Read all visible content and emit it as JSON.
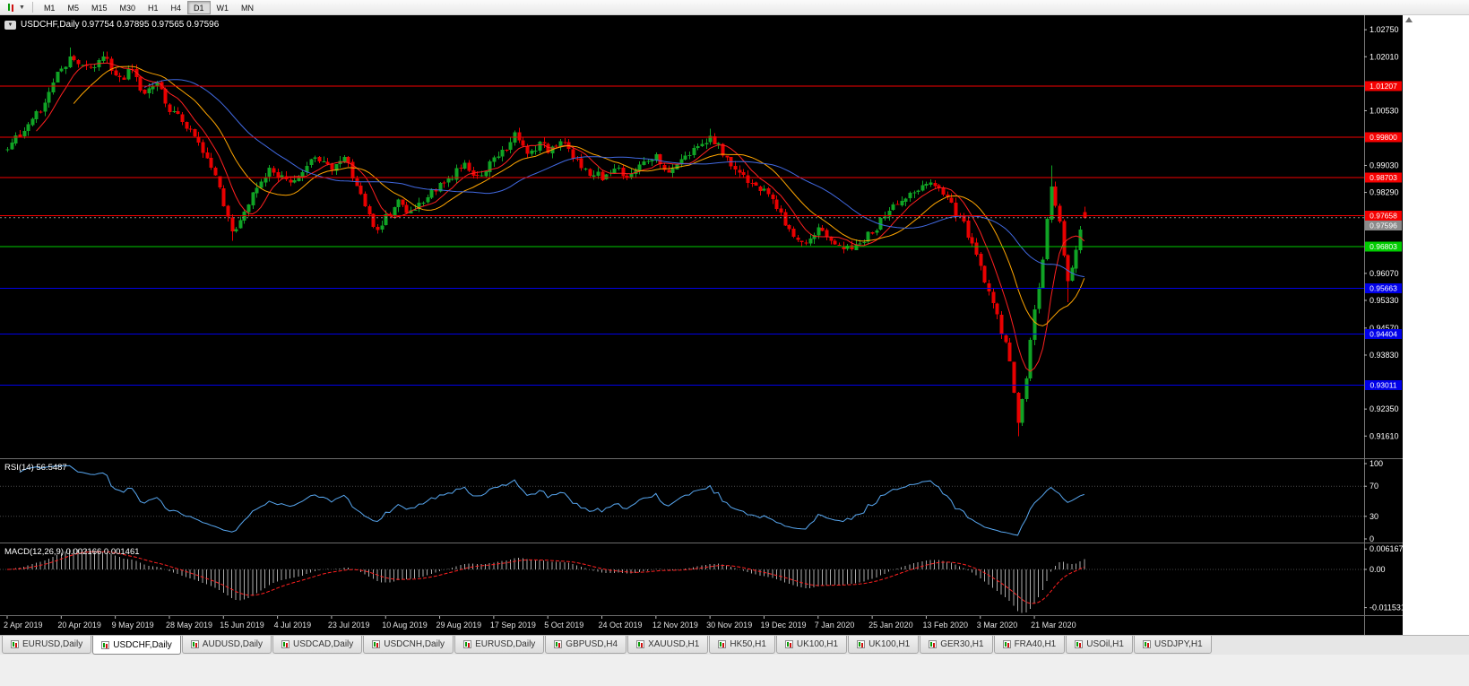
{
  "toolbar": {
    "timeframes": [
      "M1",
      "M5",
      "M15",
      "M30",
      "H1",
      "H4",
      "D1",
      "W1",
      "MN"
    ],
    "active_timeframe": "D1"
  },
  "chart": {
    "title_line": "USDCHF,Daily  0.97754 0.97895 0.97565 0.97596"
  },
  "chart_data": {
    "type": "candlestick",
    "symbol": "USDCHF",
    "period": "Daily",
    "last_bar": {
      "open": 0.97754,
      "high": 0.97895,
      "low": 0.97565,
      "close": 0.97596
    },
    "bid_price": "0.97596",
    "bars": 260,
    "bars_per_label": 13,
    "x_labels": [
      "2 Apr 2019",
      "20 Apr 2019",
      "9 May 2019",
      "28 May 2019",
      "15 Jun 2019",
      "4 Jul 2019",
      "23 Jul 2019",
      "10 Aug 2019",
      "29 Aug 2019",
      "17 Sep 2019",
      "5 Oct 2019",
      "24 Oct 2019",
      "12 Nov 2019",
      "30 Nov 2019",
      "19 Dec 2019",
      "7 Jan 2020",
      "25 Jan 2020",
      "13 Feb 2020",
      "3 Mar 2020",
      "21 Mar 2020"
    ],
    "y_axis_labels": [
      "1.02750",
      "1.02010",
      "1.00530",
      "0.99030",
      "0.98290",
      "0.96070",
      "0.95330",
      "0.94570",
      "0.93830",
      "0.92350",
      "0.91610"
    ],
    "price_range": {
      "top": 1.03,
      "bottom": 0.911
    },
    "horizontal_lines": [
      {
        "price": "1.01207",
        "color": "#F50000"
      },
      {
        "price": "0.99800",
        "color": "#F50000"
      },
      {
        "price": "0.98703",
        "color": "#F50000"
      },
      {
        "price": "0.97658",
        "color": "#F50000"
      },
      {
        "price": "0.96803",
        "color": "#00CC00"
      },
      {
        "price": "0.95663",
        "color": "#0000E8"
      },
      {
        "price": "0.94404",
        "color": "#0000E8"
      },
      {
        "price": "0.93011",
        "color": "#0000E8"
      }
    ],
    "price_keypoints": [
      [
        0,
        0.9955
      ],
      [
        4,
        1.0
      ],
      [
        8,
        1.006
      ],
      [
        12,
        1.015
      ],
      [
        15,
        1.0195
      ],
      [
        19,
        1.0165
      ],
      [
        23,
        1.02
      ],
      [
        27,
        1.014
      ],
      [
        30,
        1.0165
      ],
      [
        33,
        1.0095
      ],
      [
        36,
        1.0125
      ],
      [
        39,
        1.006
      ],
      [
        43,
        1.001
      ],
      [
        46,
        0.996
      ],
      [
        49,
        0.99
      ],
      [
        52,
        0.98
      ],
      [
        54,
        0.9715
      ],
      [
        57,
        0.978
      ],
      [
        60,
        0.985
      ],
      [
        63,
        0.9895
      ],
      [
        65,
        0.988
      ],
      [
        68,
        0.985
      ],
      [
        71,
        0.989
      ],
      [
        74,
        0.9925
      ],
      [
        78,
        0.99
      ],
      [
        81,
        0.9925
      ],
      [
        84,
        0.985
      ],
      [
        87,
        0.9765
      ],
      [
        89,
        0.9725
      ],
      [
        91,
        0.976
      ],
      [
        94,
        0.98
      ],
      [
        97,
        0.977
      ],
      [
        100,
        0.981
      ],
      [
        104,
        0.9845
      ],
      [
        107,
        0.9875
      ],
      [
        110,
        0.9905
      ],
      [
        113,
        0.987
      ],
      [
        117,
        0.9915
      ],
      [
        120,
        0.9955
      ],
      [
        122,
        0.9985
      ],
      [
        125,
        0.993
      ],
      [
        128,
        0.9965
      ],
      [
        130,
        0.9945
      ],
      [
        133,
        0.9975
      ],
      [
        136,
        0.993
      ],
      [
        139,
        0.989
      ],
      [
        143,
        0.987
      ],
      [
        146,
        0.99
      ],
      [
        149,
        0.987
      ],
      [
        152,
        0.9905
      ],
      [
        156,
        0.9925
      ],
      [
        159,
        0.989
      ],
      [
        162,
        0.9915
      ],
      [
        165,
        0.9945
      ],
      [
        169,
        0.9985
      ],
      [
        172,
        0.994
      ],
      [
        175,
        0.9895
      ],
      [
        178,
        0.9855
      ],
      [
        182,
        0.983
      ],
      [
        185,
        0.9785
      ],
      [
        188,
        0.9725
      ],
      [
        191,
        0.969
      ],
      [
        195,
        0.973
      ],
      [
        198,
        0.97
      ],
      [
        201,
        0.9665
      ],
      [
        204,
        0.9685
      ],
      [
        208,
        0.972
      ],
      [
        211,
        0.9765
      ],
      [
        214,
        0.98
      ],
      [
        217,
        0.983
      ],
      [
        221,
        0.985
      ],
      [
        224,
        0.984
      ],
      [
        227,
        0.979
      ],
      [
        230,
        0.974
      ],
      [
        233,
        0.9655
      ],
      [
        236,
        0.956
      ],
      [
        239,
        0.9445
      ],
      [
        241,
        0.9375
      ],
      [
        243,
        0.9205
      ],
      [
        245,
        0.933
      ],
      [
        247,
        0.9505
      ],
      [
        249,
        0.965
      ],
      [
        251,
        0.9845
      ],
      [
        253,
        0.9755
      ],
      [
        255,
        0.9575
      ],
      [
        257,
        0.968
      ],
      [
        259,
        0.976
      ]
    ],
    "extremes": [
      [
        15,
        "h",
        1.0226
      ],
      [
        23,
        "h",
        1.0207
      ],
      [
        54,
        "l",
        0.9696
      ],
      [
        89,
        "l",
        0.9716
      ],
      [
        122,
        "h",
        0.9998
      ],
      [
        169,
        "h",
        1.0004
      ],
      [
        243,
        "l",
        0.9161
      ],
      [
        251,
        "h",
        0.9903
      ],
      [
        255,
        "l",
        0.9528
      ]
    ],
    "moving_averages": [
      {
        "period": 8,
        "color": "#FF2020",
        "name": "ma-fast-line"
      },
      {
        "period": 17,
        "color": "#FFA500",
        "name": "ma-medium-line"
      },
      {
        "period": 34,
        "color": "#4169E1",
        "name": "ma-slow-line"
      }
    ],
    "indicators": {
      "rsi": {
        "label": "RSI(14) 56.5487",
        "period": 14,
        "value": 56.5487,
        "levels": [
          "100",
          "70",
          "30",
          "0"
        ],
        "color": "#58A8F2"
      },
      "macd": {
        "label": "MACD(12,26,9) 0.002166 0.001461",
        "fast": 12,
        "slow": 26,
        "signal": 9,
        "value": 0.002166,
        "signal_value": 0.001461,
        "axis_labels": [
          "0.006167",
          "0.00",
          "-0.011531"
        ],
        "hist_color": "#ABABAB",
        "signal_color": "#FF2020"
      }
    },
    "colors": {
      "background": "#000000",
      "foreground": "#FFFFFF",
      "candle_up": "#10A325",
      "candle_down": "#E80000",
      "bid_line": "#8A8A8A"
    }
  },
  "tabs": {
    "active_index": 1,
    "items": [
      {
        "label": "EURUSD,Daily"
      },
      {
        "label": "USDCHF,Daily"
      },
      {
        "label": "AUDUSD,Daily"
      },
      {
        "label": "USDCAD,Daily"
      },
      {
        "label": "USDCNH,Daily"
      },
      {
        "label": "EURUSD,Daily"
      },
      {
        "label": "GBPUSD,H4"
      },
      {
        "label": "XAUUSD,H1"
      },
      {
        "label": "HK50,H1"
      },
      {
        "label": "UK100,H1"
      },
      {
        "label": "UK100,H1"
      },
      {
        "label": "GER30,H1"
      },
      {
        "label": "FRA40,H1"
      },
      {
        "label": "USOil,H1"
      },
      {
        "label": "USDJPY,H1"
      }
    ]
  }
}
